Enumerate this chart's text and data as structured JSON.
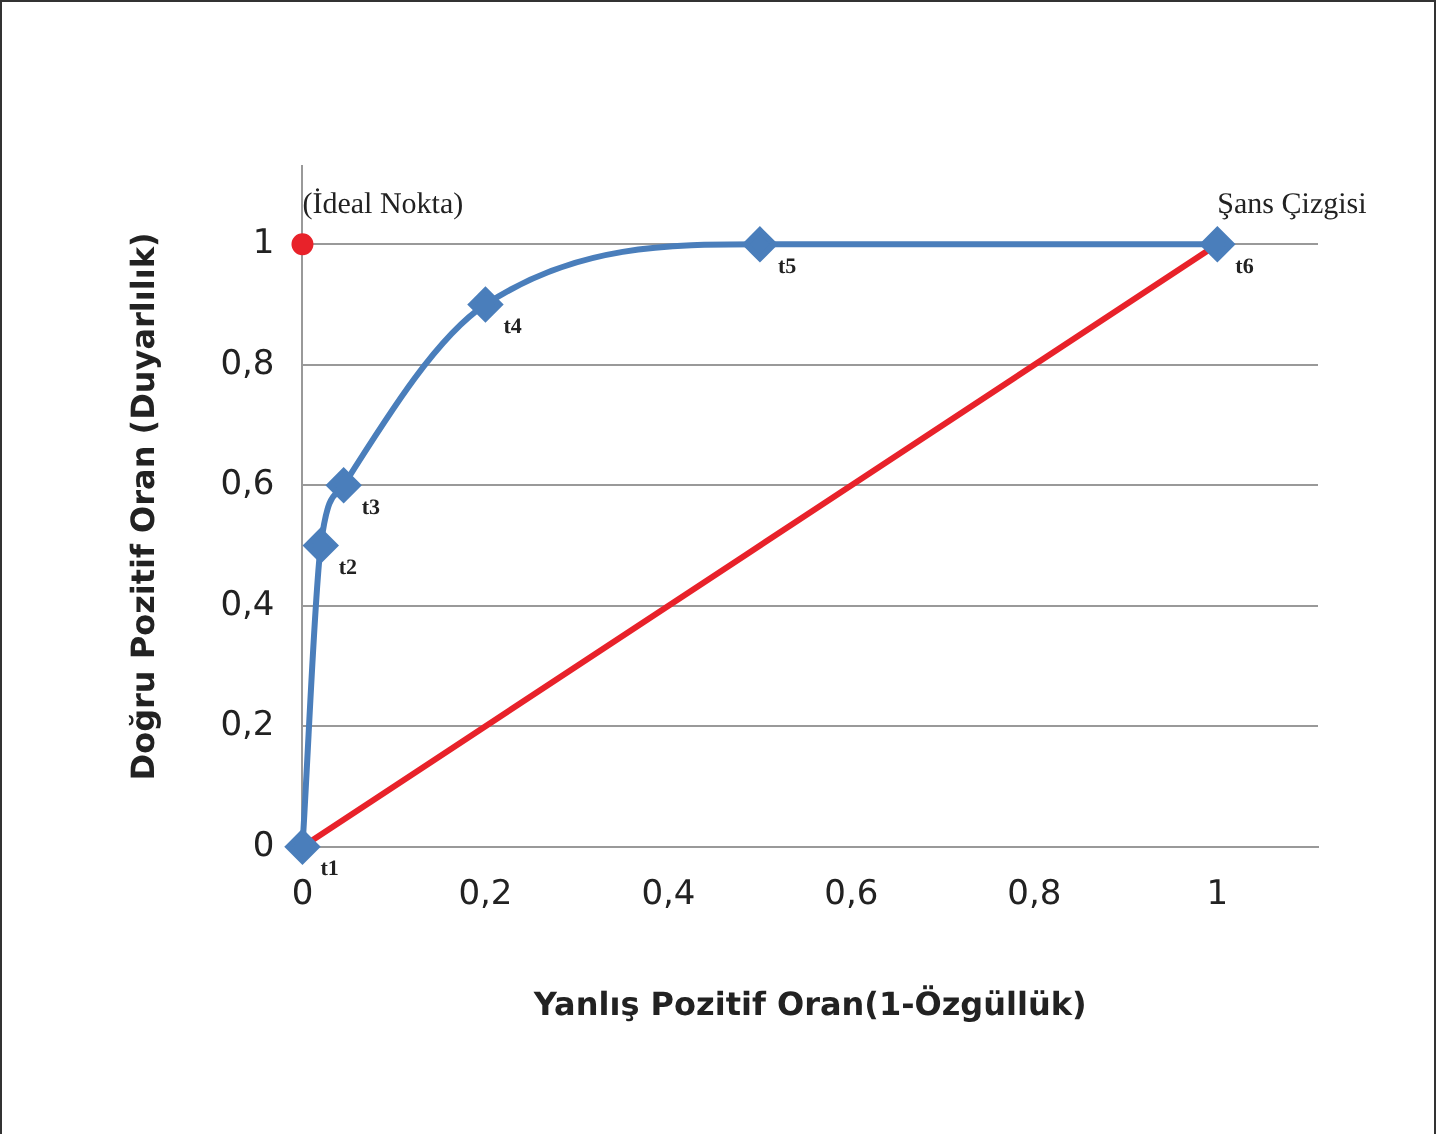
{
  "chart_data": {
    "type": "line",
    "xlabel": "Yanlış Pozitif Oran(1-Özgüllük)",
    "ylabel": "Doğru Pozitif Oran (Duyarlılık)",
    "xlim": [
      0,
      1.11
    ],
    "ylim": [
      0,
      1.13
    ],
    "xticks": [
      0,
      {
        "value": 0.2,
        "label": "0,2"
      },
      {
        "value": 0.4,
        "label": "0,4"
      },
      {
        "value": 0.6,
        "label": "0,6"
      },
      {
        "value": 0.8,
        "label": "0,8"
      },
      1
    ],
    "yticks": [
      0,
      {
        "value": 0.2,
        "label": "0,2"
      },
      {
        "value": 0.4,
        "label": "0,4"
      },
      {
        "value": 0.6,
        "label": "0,6"
      },
      {
        "value": 0.8,
        "label": "0,8"
      },
      1
    ],
    "grid": "y",
    "legend": false,
    "series": [
      {
        "color": "#4a7ebb",
        "marker": "diamond",
        "x": [
          0,
          0.02,
          0.045,
          0.2,
          0.5,
          1
        ],
        "values": [
          0,
          0.5,
          0.6,
          0.9,
          1,
          1
        ],
        "value_labels": [
          "t1",
          "t2",
          "t3",
          "t4",
          "t5",
          "t6"
        ]
      },
      {
        "color": "#e8222a",
        "marker": "none",
        "x": [
          0,
          1
        ],
        "values": [
          0,
          1
        ]
      },
      {
        "type": "scatter",
        "color": "#e8222a",
        "marker": "circle",
        "x": [
          0
        ],
        "values": [
          1
        ]
      }
    ],
    "annotations": [
      {
        "text": "(İdeal Nokta)",
        "x": 0,
        "y": 1
      },
      {
        "text": "Şans Çizgisi",
        "x": 1,
        "y": 1
      }
    ]
  }
}
